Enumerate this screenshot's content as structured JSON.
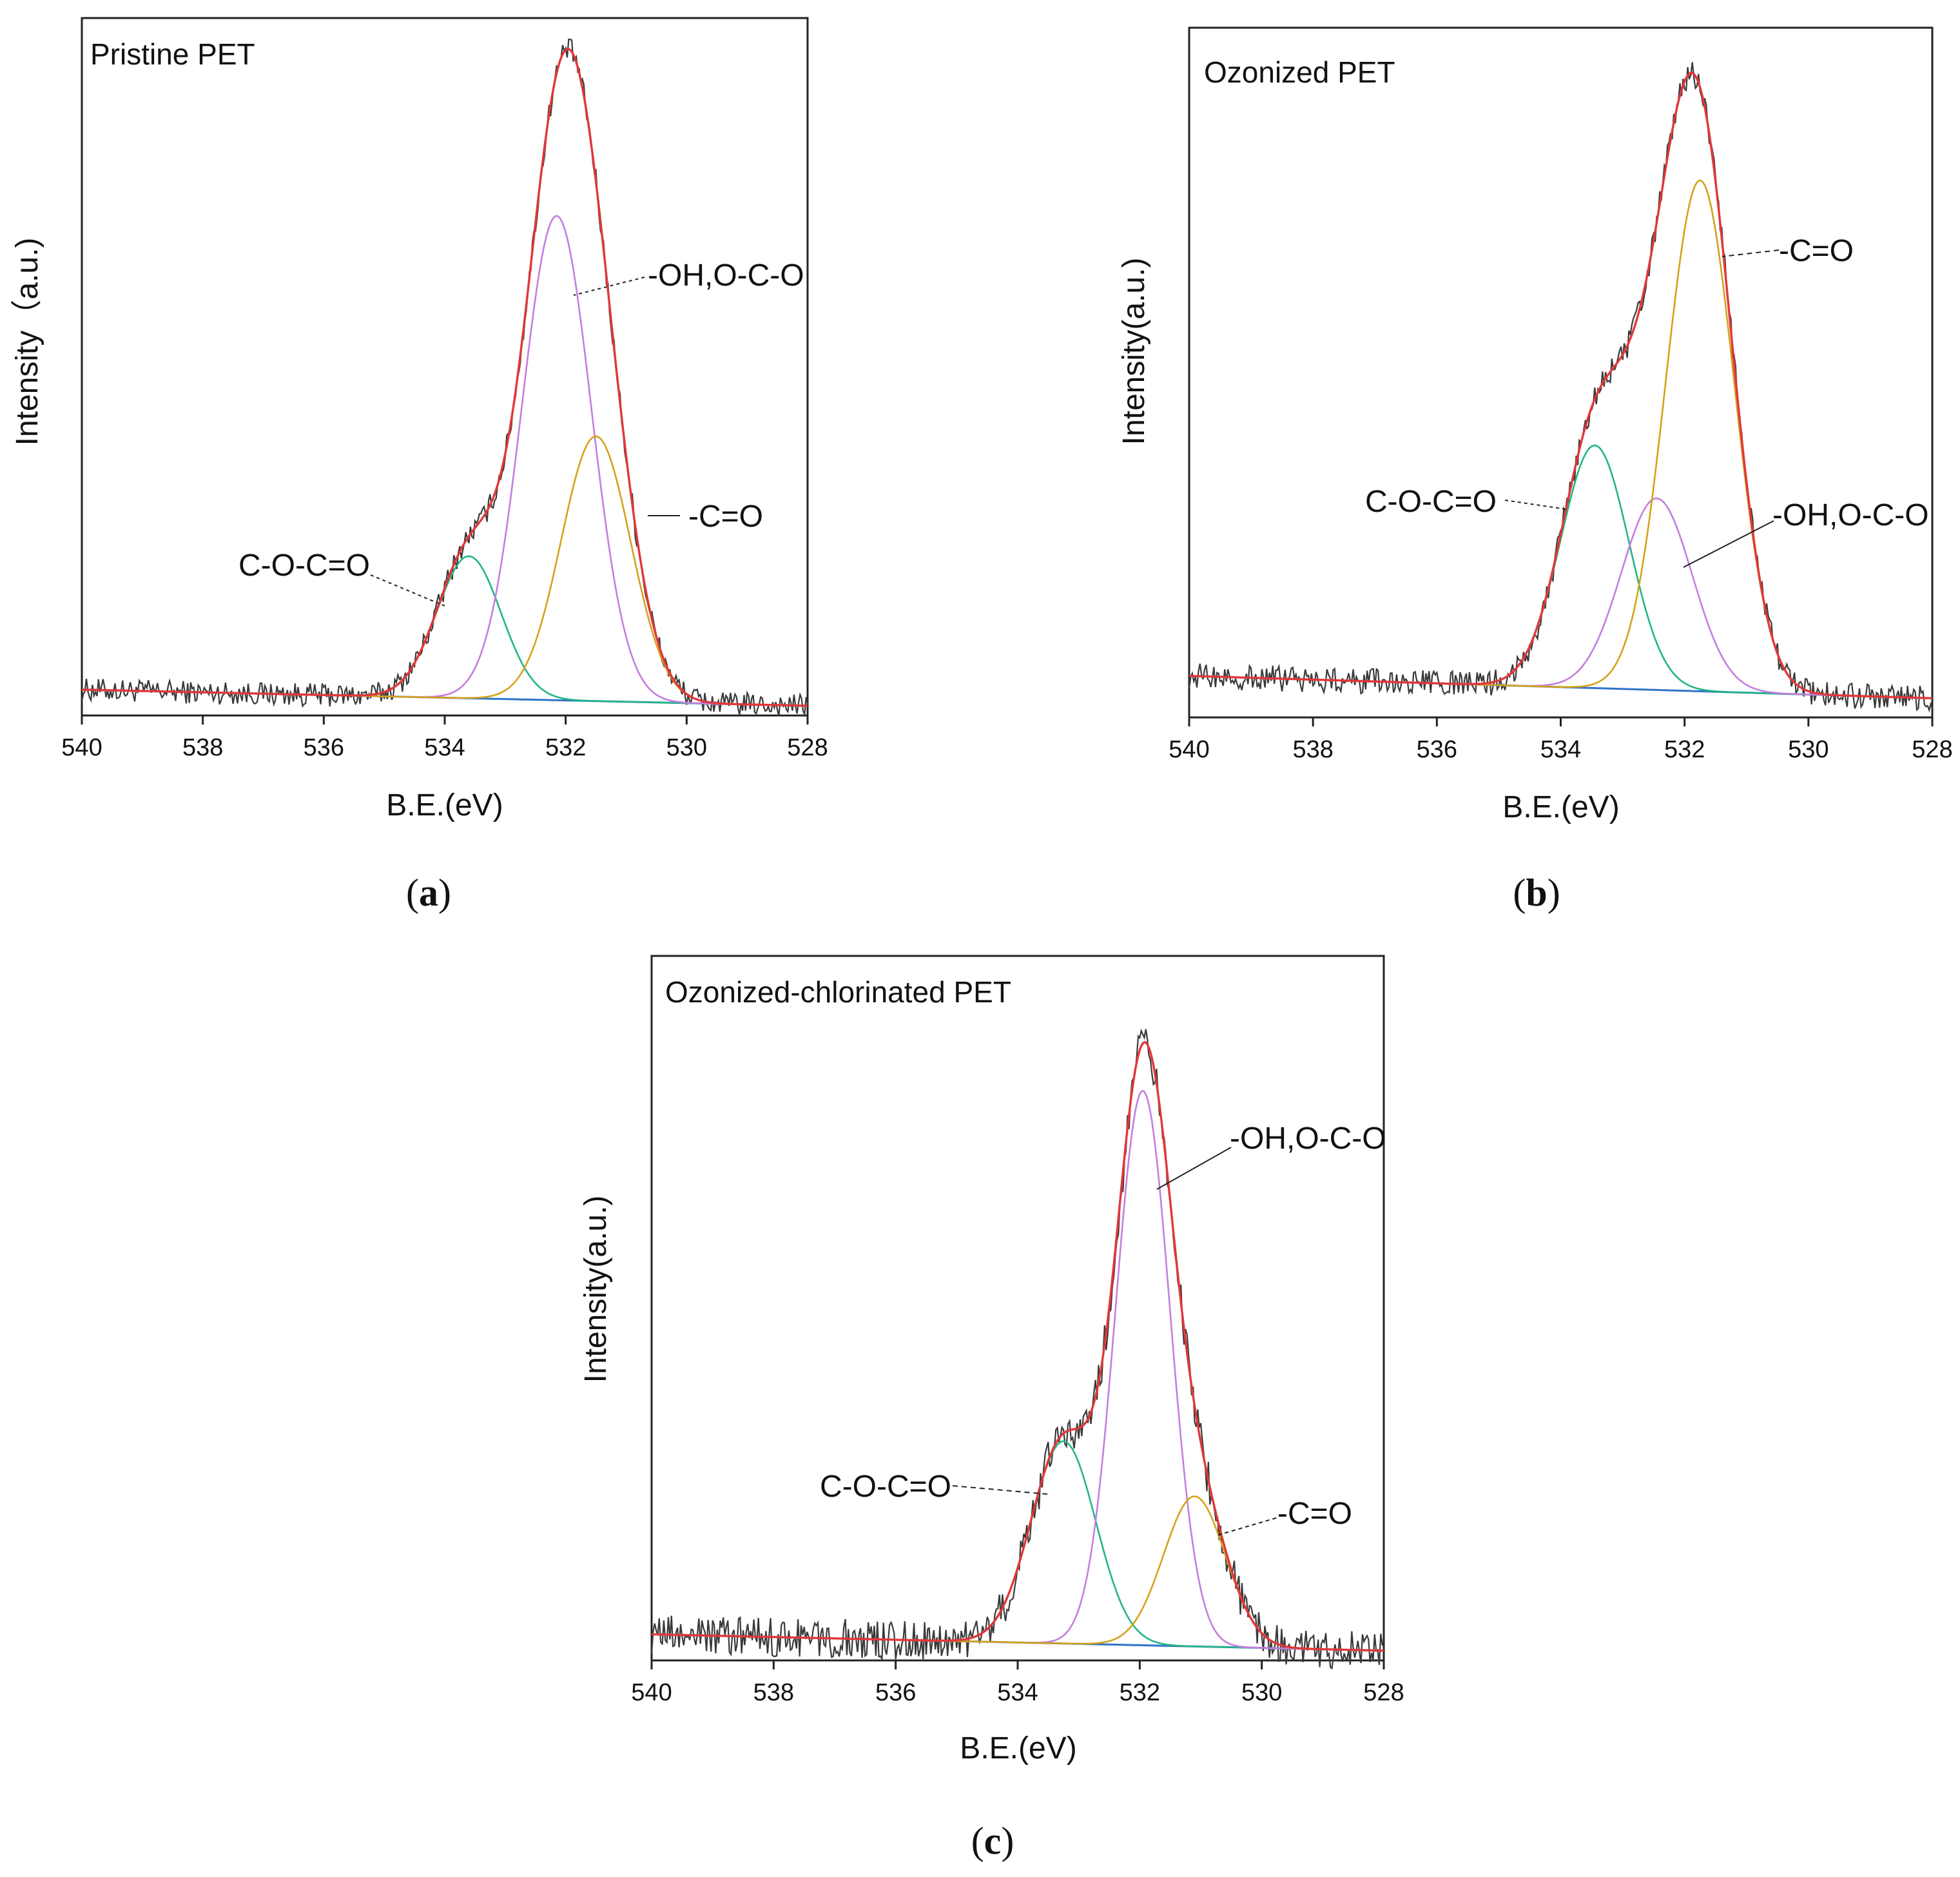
{
  "colors": {
    "raw": "#3a3a3a",
    "envelope": "#e2373a",
    "component_C_O_C_O": "#22b585",
    "component_OH": "#c47ede",
    "component_CO": "#d4a21a",
    "background": "#2f74c8"
  },
  "chart_data": [
    {
      "type": "line",
      "panel": "a",
      "caption": "a",
      "title": "Pristine PET",
      "xlabel": "B.E.(eV)",
      "ylabel": "Intensity（a.u.)",
      "xlim": [
        540,
        528
      ],
      "x_ticks": [
        "540",
        "538",
        "536",
        "534",
        "532",
        "530",
        "528"
      ],
      "ylim": [
        0,
        1.08
      ],
      "baseline": [
        0.04,
        0.015
      ],
      "peaks": [
        {
          "name": "C-O-C=O",
          "center": 533.6,
          "fwhm": 1.25,
          "height": 0.22
        },
        {
          "name": "-OH,O-C-O",
          "center": 532.15,
          "fwhm": 1.35,
          "height": 0.75
        },
        {
          "name": "-C=O",
          "center": 531.5,
          "fwhm": 1.35,
          "height": 0.41
        }
      ],
      "labels": [
        "C-O-C=O",
        "-OH,O-C-O",
        "-C=O"
      ],
      "noise": 0.018
    },
    {
      "type": "line",
      "panel": "b",
      "caption": "b",
      "title": "Ozonized PET",
      "xlabel": "B.E.(eV)",
      "ylabel": "Intensity(a.u.)",
      "xlim": [
        540,
        528
      ],
      "x_ticks": [
        "540",
        "538",
        "536",
        "534",
        "532",
        "530",
        "528"
      ],
      "ylim": [
        0,
        1.08
      ],
      "baseline": [
        0.065,
        0.03
      ],
      "peaks": [
        {
          "name": "C-O-C=O",
          "center": 533.45,
          "fwhm": 1.3,
          "height": 0.38
        },
        {
          "name": "-OH,O-C-O",
          "center": 532.45,
          "fwhm": 1.35,
          "height": 0.3
        },
        {
          "name": "-C=O",
          "center": 531.75,
          "fwhm": 1.3,
          "height": 0.8
        }
      ],
      "labels": [
        "C-O-C=O",
        "-C=O",
        "-OH,O-C-O"
      ],
      "noise": 0.02
    },
    {
      "type": "line",
      "panel": "c",
      "caption": "c",
      "title": "Ozonized-chlorinated PET",
      "xlabel": "B.E.(eV)",
      "ylabel": "Intensity(a.u.)",
      "xlim": [
        540,
        528
      ],
      "x_ticks": [
        "540",
        "538",
        "536",
        "534",
        "532",
        "530",
        "528"
      ],
      "ylim": [
        0,
        1.08
      ],
      "baseline": [
        0.04,
        0.015
      ],
      "peaks": [
        {
          "name": "C-O-C=O",
          "center": 533.25,
          "fwhm": 1.25,
          "height": 0.31
        },
        {
          "name": "-OH,O-C-O",
          "center": 531.95,
          "fwhm": 1.05,
          "height": 0.85
        },
        {
          "name": "-C=O",
          "center": 531.1,
          "fwhm": 1.2,
          "height": 0.23
        }
      ],
      "labels": [
        "C-O-C=O",
        "-OH,O-C-O",
        "-C=O"
      ],
      "noise": 0.03
    }
  ]
}
